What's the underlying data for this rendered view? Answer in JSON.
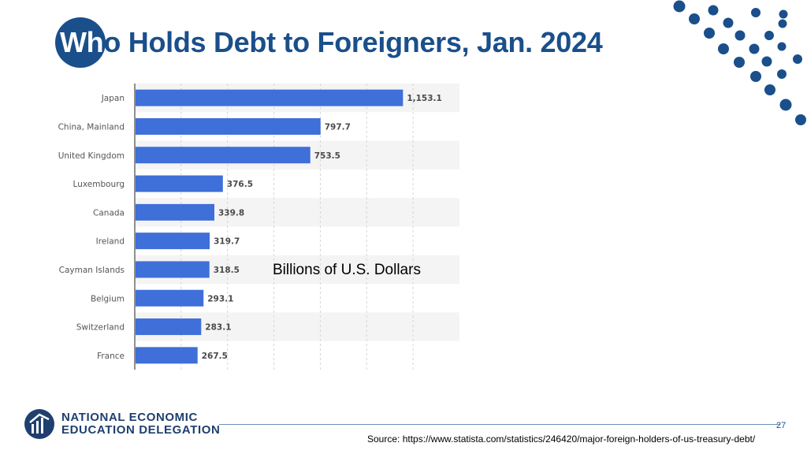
{
  "slide": {
    "title_first": "Wh",
    "title_rest": "o Holds Debt to Foreigners, Jan. 2024",
    "units_label": "Billions of U.S. Dollars",
    "page_number": "27",
    "source": "Source: https://www.statista.com/statistics/246420/major-foreign-holders-of-us-treasury-debt/"
  },
  "logo": {
    "line1": "NATIONAL ECONOMIC",
    "line2": "EDUCATION DELEGATION",
    "icon": "need-logo-icon"
  },
  "colors": {
    "brand": "#1a4f8b",
    "bar": "#3f6fd8",
    "dot": "#1a4f8b"
  },
  "chart_data": {
    "type": "bar",
    "orientation": "horizontal",
    "categories": [
      "Japan",
      "China, Mainland",
      "United Kingdom",
      "Luxembourg",
      "Canada",
      "Ireland",
      "Cayman Islands",
      "Belgium",
      "Switzerland",
      "France"
    ],
    "values": [
      1153.1,
      797.7,
      753.5,
      376.5,
      339.8,
      319.7,
      318.5,
      293.1,
      283.1,
      267.5
    ],
    "value_labels": [
      "1,153.1",
      "797.7",
      "753.5",
      "376.5",
      "339.8",
      "319.7",
      "318.5",
      "293.1",
      "283.1",
      "267.5"
    ],
    "title": "",
    "xlabel": "",
    "ylabel": "",
    "xlim": [
      0,
      1400
    ],
    "grid": true
  }
}
